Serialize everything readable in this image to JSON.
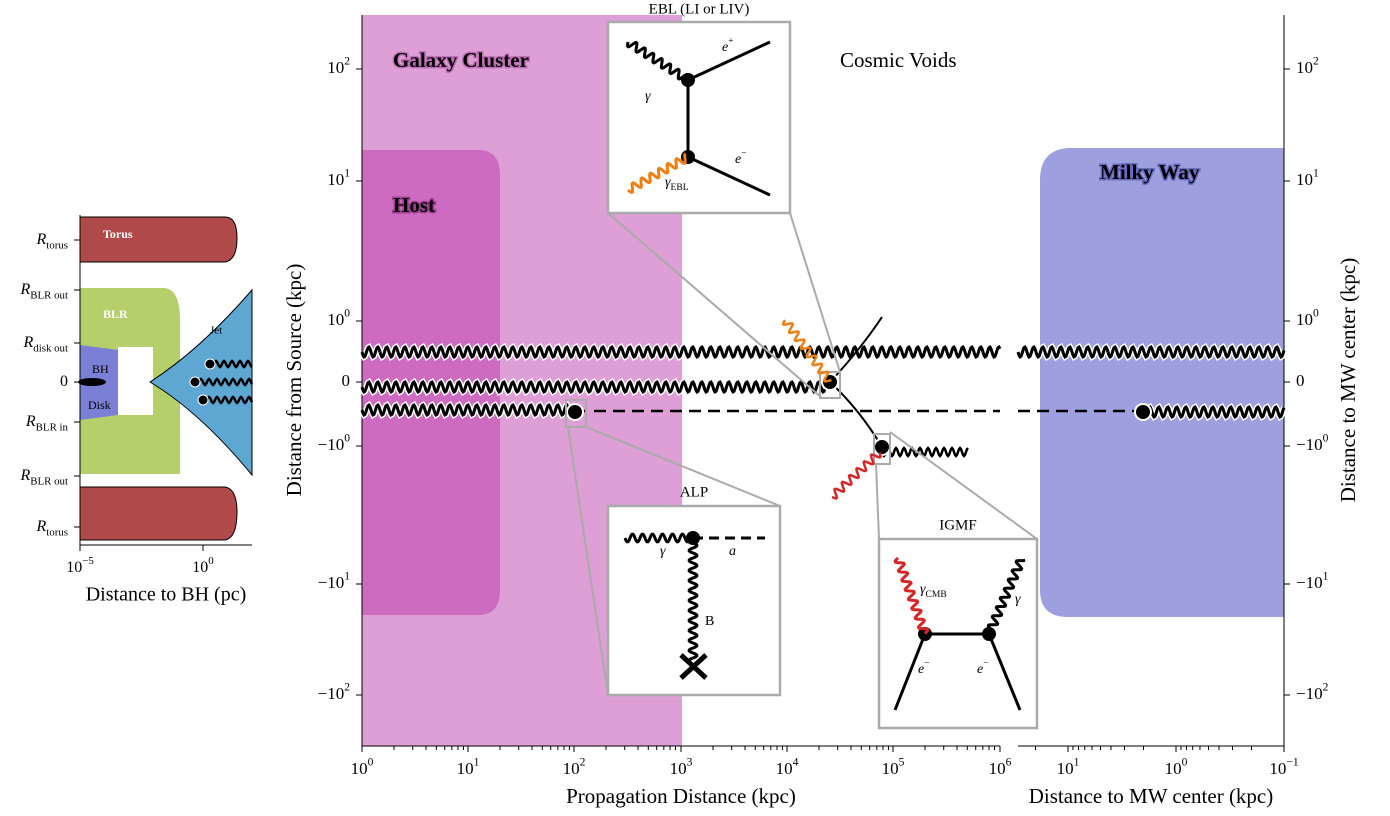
{
  "left_panel": {
    "y_labels": [
      {
        "symbol": "R",
        "sub": "torus"
      },
      {
        "symbol": "R",
        "sub": "BLR out"
      },
      {
        "symbol": "R",
        "sub": "disk out"
      },
      {
        "symbol": "0"
      },
      {
        "symbol": "R",
        "sub": "BLR in"
      },
      {
        "symbol": "R",
        "sub": "BLR out"
      },
      {
        "symbol": "R",
        "sub": "torus"
      }
    ],
    "x_ticks": [
      {
        "base": "10",
        "exp": "−5"
      },
      {
        "base": "10",
        "exp": "0"
      }
    ],
    "x_label": "Distance to BH (pc)",
    "regions": [
      "Torus",
      "BLR",
      "Jet",
      "BH",
      "Disk"
    ]
  },
  "main_panel": {
    "y_label": "Distance from Source (kpc)",
    "y2_label": "Distance to MW center (kpc)",
    "y_ticks": [
      {
        "base": "10",
        "exp": "2"
      },
      {
        "base": "10",
        "exp": "1"
      },
      {
        "base": "10",
        "exp": "0"
      },
      {
        "base": "0"
      },
      {
        "base": "−10",
        "exp": "0"
      },
      {
        "base": "−10",
        "exp": "1"
      },
      {
        "base": "−10",
        "exp": "2"
      }
    ],
    "x_ticks": [
      {
        "base": "10",
        "exp": "0"
      },
      {
        "base": "10",
        "exp": "1"
      },
      {
        "base": "10",
        "exp": "2"
      },
      {
        "base": "10",
        "exp": "3"
      },
      {
        "base": "10",
        "exp": "4"
      },
      {
        "base": "10",
        "exp": "5"
      },
      {
        "base": "10",
        "exp": "6"
      }
    ],
    "x2_ticks": [
      {
        "base": "10",
        "exp": "1"
      },
      {
        "base": "10",
        "exp": "0"
      },
      {
        "base": "10",
        "exp": "−1"
      }
    ],
    "x_label": "Propagation Distance (kpc)",
    "x2_label": "Distance to MW center (kpc)",
    "regions": [
      "Galaxy Cluster",
      "Host",
      "Cosmic Voids",
      "Milky Way"
    ]
  },
  "insets": {
    "ebl": {
      "title": "EBL (LI or LIV)",
      "labels": [
        {
          "base": "e",
          "sup": "+"
        },
        {
          "base": "γ"
        },
        {
          "base": "e",
          "sup": "−"
        },
        {
          "base": "γ",
          "sub": "EBL"
        }
      ]
    },
    "alp": {
      "title": "ALP",
      "labels": [
        {
          "base": "γ"
        },
        {
          "base": "a"
        },
        {
          "base": "B"
        }
      ]
    },
    "igmf": {
      "title": "IGMF",
      "labels": [
        {
          "base": "γ",
          "sub": "CMB"
        },
        {
          "base": "γ"
        },
        {
          "base": "e",
          "sup": "−"
        },
        {
          "base": "e",
          "sup": "−"
        }
      ]
    }
  }
}
